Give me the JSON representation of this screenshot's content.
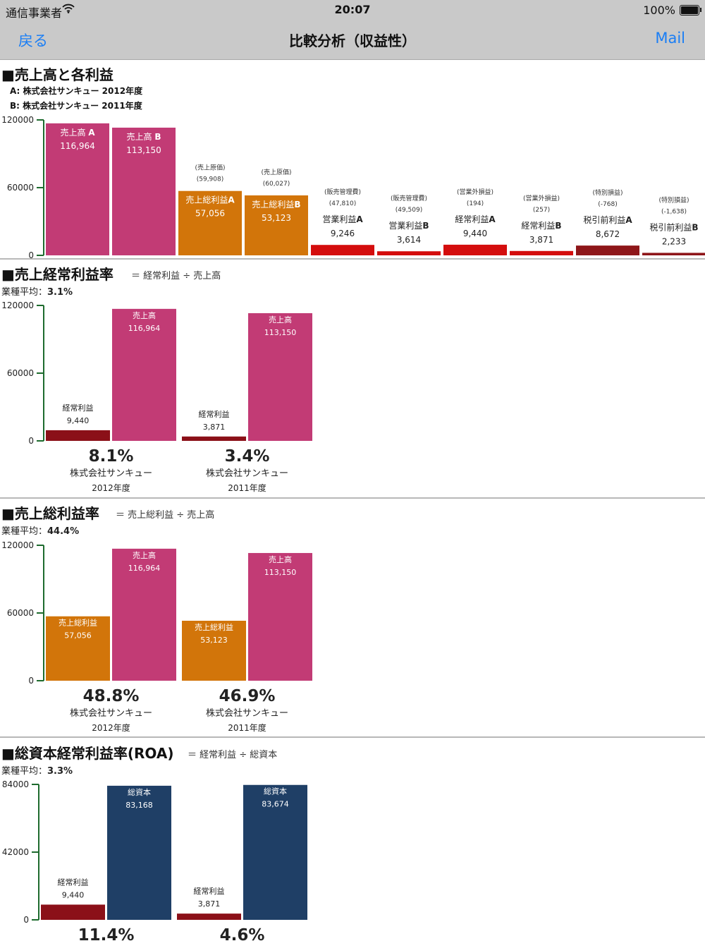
{
  "status_bar": {
    "carrier": "通信事業者",
    "wifi_icon": "wifi-icon",
    "time": "20:07",
    "battery": "100%"
  },
  "nav": {
    "back_label": "戻る",
    "title": "比較分析（収益性）",
    "mail_label": "Mail"
  },
  "colors": {
    "sales": "#c23b75",
    "gross": "#d2750a",
    "operating": "#d40d0d",
    "ordinary": "#8b1018",
    "pretax": "#8e1619",
    "capital": "#1f3f66",
    "axis": "#1e6b2e"
  },
  "section1": {
    "title": "■売上高と各利益",
    "legend_a": "A: 株式会社サンキュー 2012年度",
    "legend_b": "B: 株式会社サンキュー 2011年度"
  },
  "section2": {
    "title": "■売上経常利益率",
    "formula": "＝ 経常利益 ÷ 売上高",
    "avg_label": "業種平均：",
    "avg_value": "3.1%"
  },
  "section3": {
    "title": "■売上総利益率",
    "formula": "＝ 売上総利益 ÷ 売上高",
    "avg_label": "業種平均：",
    "avg_value": "44.4%"
  },
  "section4": {
    "title": "■総資本経常利益率(ROA)",
    "formula": "＝ 経常利益 ÷ 総資本",
    "avg_label": "業種平均：",
    "avg_value": "3.3%"
  },
  "chart_data": [
    {
      "type": "bar",
      "title": "■売上高と各利益",
      "ylim": [
        0,
        120000
      ],
      "yticks": [
        "120000",
        "60000",
        "0"
      ],
      "bars": [
        {
          "label": "売上高 ",
          "suffix": "A",
          "value": 116964,
          "value_text": "116,964",
          "color": "sales",
          "inside": true
        },
        {
          "label": "売上高 ",
          "suffix": "B",
          "value": 113150,
          "value_text": "113,150",
          "color": "sales",
          "inside": true
        },
        {
          "label": "売上総利益",
          "suffix": "A",
          "value": 57056,
          "value_text": "57,056",
          "color": "gross",
          "inside": true,
          "note": "(売上原価)",
          "note_value": "(59,908)"
        },
        {
          "label": "売上総利益",
          "suffix": "B",
          "value": 53123,
          "value_text": "53,123",
          "color": "gross",
          "inside": true,
          "note": "(売上原価)",
          "note_value": "(60,027)"
        },
        {
          "label": "営業利益",
          "suffix": "A",
          "value": 9246,
          "value_text": "9,246",
          "color": "operating",
          "inside": false,
          "note": "(販売管理費)",
          "note_value": "(47,810)"
        },
        {
          "label": "営業利益",
          "suffix": "B",
          "value": 3614,
          "value_text": "3,614",
          "color": "operating",
          "inside": false,
          "note": "(販売管理費)",
          "note_value": "(49,509)"
        },
        {
          "label": "経常利益",
          "suffix": "A",
          "value": 9440,
          "value_text": "9,440",
          "color": "operating",
          "inside": false,
          "note": "(営業外損益)",
          "note_value": "(194)"
        },
        {
          "label": "経常利益",
          "suffix": "B",
          "value": 3871,
          "value_text": "3,871",
          "color": "operating",
          "inside": false,
          "note": "(営業外損益)",
          "note_value": "(257)"
        },
        {
          "label": "税引前利益",
          "suffix": "A",
          "value": 8672,
          "value_text": "8,672",
          "color": "pretax",
          "inside": false,
          "note": "(特別損益)",
          "note_value": "(-768)"
        },
        {
          "label": "税引前利益",
          "suffix": "B",
          "value": 2233,
          "value_text": "2,233",
          "color": "pretax",
          "inside": false,
          "note": "(特別損益)",
          "note_value": "(-1,638)"
        }
      ]
    },
    {
      "type": "bar",
      "title": "■売上経常利益率",
      "ylim": [
        0,
        120000
      ],
      "yticks": [
        "120000",
        "60000",
        "0"
      ],
      "groups": [
        {
          "ratio": "8.1%",
          "company": "株式会社サンキュー",
          "year": "2012年度",
          "bars": [
            {
              "label": "経常利益",
              "value": 9440,
              "value_text": "9,440",
              "color": "ordinary"
            },
            {
              "label": "売上高",
              "value": 116964,
              "value_text": "116,964",
              "color": "sales"
            }
          ]
        },
        {
          "ratio": "3.4%",
          "company": "株式会社サンキュー",
          "year": "2011年度",
          "bars": [
            {
              "label": "経常利益",
              "value": 3871,
              "value_text": "3,871",
              "color": "ordinary"
            },
            {
              "label": "売上高",
              "value": 113150,
              "value_text": "113,150",
              "color": "sales"
            }
          ]
        }
      ]
    },
    {
      "type": "bar",
      "title": "■売上総利益率",
      "ylim": [
        0,
        120000
      ],
      "yticks": [
        "120000",
        "60000",
        "0"
      ],
      "groups": [
        {
          "ratio": "48.8%",
          "company": "株式会社サンキュー",
          "year": "2012年度",
          "bars": [
            {
              "label": "売上総利益",
              "value": 57056,
              "value_text": "57,056",
              "color": "gross"
            },
            {
              "label": "売上高",
              "value": 116964,
              "value_text": "116,964",
              "color": "sales"
            }
          ]
        },
        {
          "ratio": "46.9%",
          "company": "株式会社サンキュー",
          "year": "2011年度",
          "bars": [
            {
              "label": "売上総利益",
              "value": 53123,
              "value_text": "53,123",
              "color": "gross"
            },
            {
              "label": "売上高",
              "value": 113150,
              "value_text": "113,150",
              "color": "sales"
            }
          ]
        }
      ]
    },
    {
      "type": "bar",
      "title": "■総資本経常利益率(ROA)",
      "ylim": [
        0,
        84000
      ],
      "yticks": [
        "84000",
        "42000",
        "0"
      ],
      "groups": [
        {
          "ratio": "11.4%",
          "company": "",
          "year": "",
          "bars": [
            {
              "label": "経常利益",
              "value": 9440,
              "value_text": "9,440",
              "color": "ordinary"
            },
            {
              "label": "総資本",
              "value": 83168,
              "value_text": "83,168",
              "color": "capital"
            }
          ]
        },
        {
          "ratio": "4.6%",
          "company": "",
          "year": "",
          "bars": [
            {
              "label": "経常利益",
              "value": 3871,
              "value_text": "3,871",
              "color": "ordinary"
            },
            {
              "label": "総資本",
              "value": 83674,
              "value_text": "83,674",
              "color": "capital"
            }
          ]
        }
      ]
    }
  ]
}
